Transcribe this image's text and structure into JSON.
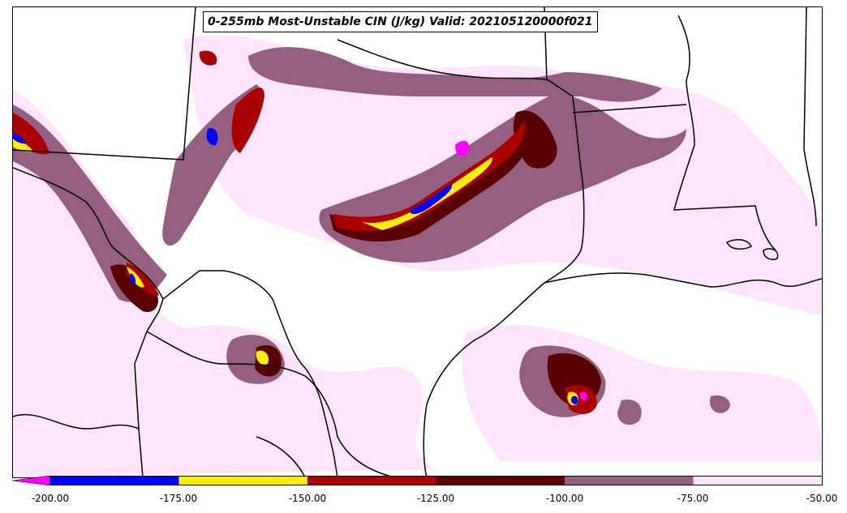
{
  "title": "0-255mb Most-Unstable CIN (J/kg) Valid: 202105120000f021",
  "colorbar": {
    "levels": [
      -200,
      -175,
      -150,
      -125,
      -100,
      -75,
      -50
    ],
    "tick_labels": [
      "-200.00",
      "-175.00",
      "-150.00",
      "-125.00",
      "-100.00",
      "-75.00",
      "-50.00"
    ],
    "colors": {
      "below_-200": "#ff00ff",
      "-200_to_-175": "#0000ff",
      "-175_to_-150": "#ffee00",
      "-150_to_-125": "#aa0000",
      "-125_to_-100": "#5a0000",
      "-100_to_-75": "#956080",
      "-75_to_-50": "#ffe5fb"
    }
  }
}
